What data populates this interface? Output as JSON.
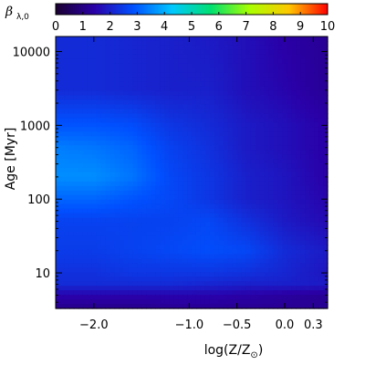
{
  "chart_data": {
    "type": "heatmap",
    "title": "",
    "colorbar": {
      "symbol": "β",
      "subscript": "λ,0",
      "range": [
        0,
        10
      ],
      "ticks": [
        "0",
        "1",
        "2",
        "3",
        "4",
        "5",
        "6",
        "7",
        "8",
        "9",
        "10"
      ],
      "colors": [
        "#1a0030",
        "#2a00a8",
        "#0050ff",
        "#00c8ff",
        "#00e070",
        "#aaff00",
        "#ffc800",
        "#ff0000"
      ]
    },
    "xaxis": {
      "label_prefix": "log(Z/Z",
      "label_sub": "⊙",
      "label_suffix": ")",
      "range": [
        -2.4,
        0.45
      ],
      "ticks": [
        {
          "value": -2.0,
          "label": "−2.0"
        },
        {
          "value": -1.0,
          "label": "−1.0"
        },
        {
          "value": -0.5,
          "label": "−0.5"
        },
        {
          "value": 0.0,
          "label": "0.0"
        },
        {
          "value": 0.3,
          "label": "0.3"
        }
      ]
    },
    "yaxis": {
      "label_prefix": "Age ",
      "label_unit": "[Myr]",
      "scale": "log",
      "range": [
        3.3,
        16000
      ],
      "ticks": [
        {
          "value": 10,
          "label": "10"
        },
        {
          "value": 100,
          "label": "100"
        },
        {
          "value": 1000,
          "label": "1000"
        },
        {
          "value": 10000,
          "label": "10000"
        }
      ]
    },
    "grid": {
      "x": [
        -2.4,
        -2.0,
        -1.6,
        -1.2,
        -0.8,
        -0.4,
        0.0,
        0.45
      ],
      "y": [
        3.3,
        5,
        7,
        10,
        20,
        50,
        100,
        200,
        500,
        1000,
        3000,
        16000
      ],
      "z": [
        [
          1.1,
          1.1,
          1.1,
          1.2,
          1.2,
          1.2,
          1.2,
          1.2
        ],
        [
          1.5,
          1.5,
          1.5,
          1.5,
          1.5,
          1.4,
          1.3,
          1.2
        ],
        [
          2.2,
          2.2,
          2.2,
          2.2,
          2.1,
          2.0,
          2.0,
          1.9
        ],
        [
          2.3,
          2.3,
          2.4,
          2.4,
          2.4,
          2.3,
          2.1,
          1.8
        ],
        [
          2.5,
          2.5,
          2.6,
          2.7,
          2.8,
          2.7,
          2.2,
          1.9
        ],
        [
          2.6,
          2.6,
          2.6,
          2.6,
          2.7,
          2.3,
          1.9,
          1.6
        ],
        [
          3.1,
          3.1,
          2.9,
          2.7,
          2.4,
          2.0,
          1.8,
          1.5
        ],
        [
          3.6,
          3.6,
          3.3,
          2.7,
          2.4,
          2.0,
          1.8,
          1.4
        ],
        [
          3.4,
          3.3,
          3.1,
          2.6,
          2.3,
          1.9,
          1.7,
          1.4
        ],
        [
          2.9,
          2.9,
          2.8,
          2.4,
          2.2,
          1.9,
          1.7,
          1.4
        ],
        [
          2.2,
          2.2,
          2.1,
          2.0,
          2.0,
          1.7,
          1.5,
          1.2
        ],
        [
          2.2,
          2.2,
          2.1,
          2.0,
          1.9,
          1.7,
          1.4,
          1.2
        ]
      ]
    }
  }
}
